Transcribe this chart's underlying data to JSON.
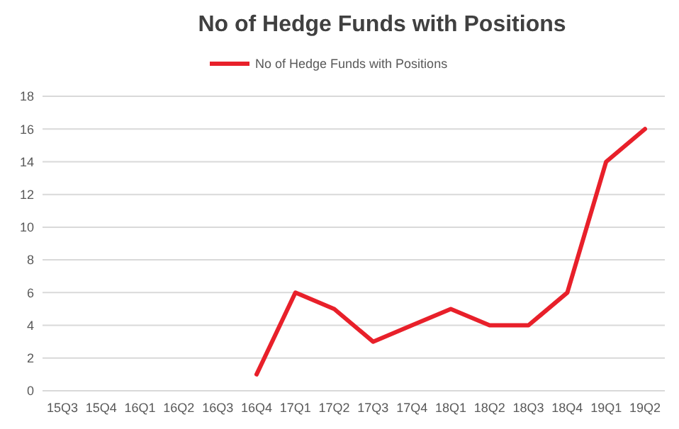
{
  "chart_data": {
    "type": "line",
    "title": "No of Hedge Funds with Positions",
    "categories": [
      "15Q3",
      "15Q4",
      "16Q1",
      "16Q2",
      "16Q3",
      "16Q4",
      "17Q1",
      "17Q2",
      "17Q3",
      "17Q4",
      "18Q1",
      "18Q2",
      "18Q3",
      "18Q4",
      "19Q1",
      "19Q2"
    ],
    "series": [
      {
        "name": "No of Hedge Funds with Positions",
        "color": "#e8202a",
        "values": [
          null,
          null,
          null,
          null,
          null,
          1,
          6,
          5,
          3,
          4,
          5,
          4,
          4,
          6,
          14,
          16
        ]
      }
    ],
    "ylim": [
      0,
      18
    ],
    "yticks": [
      0,
      2,
      4,
      6,
      8,
      10,
      12,
      14,
      16,
      18
    ],
    "grid": "y",
    "legend": "top",
    "marker": "none",
    "line_style": "solid"
  }
}
